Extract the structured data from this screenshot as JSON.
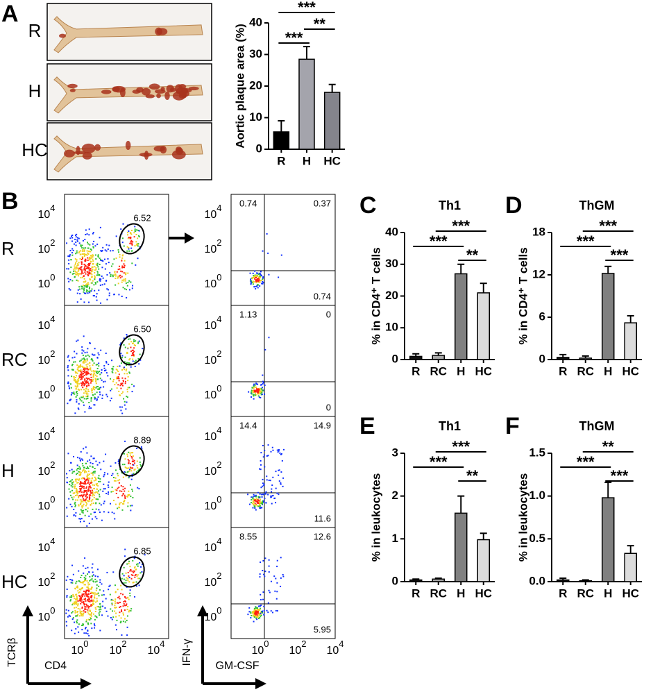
{
  "panel_labels": [
    "A",
    "B",
    "C",
    "D",
    "E",
    "F"
  ],
  "aorta_labels": [
    "R",
    "H",
    "HC"
  ],
  "flow": {
    "rows": [
      {
        "label": "R",
        "gate": "6.52",
        "quadrants": [
          "0.74",
          "0.37",
          "0.74"
        ]
      },
      {
        "label": "RC",
        "gate": "6.50",
        "quadrants": [
          "1.13",
          "0",
          "0"
        ]
      },
      {
        "label": "H",
        "gate": "8.89",
        "quadrants": [
          "14.4",
          "14.9",
          "11.6"
        ]
      },
      {
        "label": "HC",
        "gate": "6.85",
        "quadrants": [
          "8.55",
          "12.6",
          "5.95"
        ]
      }
    ],
    "tick_base": "10",
    "tick_exponents": [
      "0",
      "2",
      "4"
    ],
    "left_y_label": "TCRβ",
    "left_x_label": "CD4",
    "right_y_label": "IFN-γ",
    "right_x_label": "GM-CSF"
  },
  "chart_data": [
    {
      "type": "bar",
      "y_label": "Aortic plaque area (%)",
      "categories": [
        "R",
        "H",
        "HC"
      ],
      "values": [
        5.5,
        28.5,
        18
      ],
      "errors": [
        3.5,
        4,
        2.5
      ],
      "colors": [
        "#000000",
        "#a4a4ac",
        "#84848c"
      ],
      "ylim": [
        0,
        40
      ],
      "yticks": [
        0,
        10,
        20,
        30,
        40
      ],
      "annotations": [
        {
          "text": "***",
          "between": [
            "R",
            "H"
          ]
        },
        {
          "text": "**",
          "between": [
            "H",
            "HC"
          ]
        },
        {
          "text": "***",
          "between": [
            "R",
            "HC"
          ]
        }
      ]
    },
    {
      "type": "bar",
      "title": "Th1",
      "y_label": "% in CD4⁺ T cells",
      "categories": [
        "R",
        "RC",
        "H",
        "HC"
      ],
      "values": [
        1,
        1.3,
        27,
        21
      ],
      "errors": [
        0.8,
        0.8,
        3,
        3
      ],
      "colors": [
        "#111111",
        "#a8a8a8",
        "#808080",
        "#dcdcdc"
      ],
      "ylim": [
        0,
        40
      ],
      "yticks": [
        0,
        10,
        20,
        30,
        40
      ],
      "annotations": [
        {
          "text": "**",
          "between": [
            "H",
            "HC"
          ]
        },
        {
          "text": "***",
          "between": [
            "R",
            "H"
          ]
        },
        {
          "text": "***",
          "between": [
            "RC",
            "HC"
          ]
        }
      ]
    },
    {
      "type": "bar",
      "title": "ThGM",
      "y_label": "% in CD4⁺ T cells",
      "categories": [
        "R",
        "RC",
        "H",
        "HC"
      ],
      "values": [
        0.3,
        0.2,
        12.2,
        5.2
      ],
      "errors": [
        0.4,
        0.3,
        1,
        1
      ],
      "colors": [
        "#111111",
        "#a8a8a8",
        "#808080",
        "#dcdcdc"
      ],
      "ylim": [
        0,
        18
      ],
      "yticks": [
        0,
        6,
        12,
        18
      ],
      "annotations": [
        {
          "text": "***",
          "between": [
            "H",
            "HC"
          ]
        },
        {
          "text": "***",
          "between": [
            "R",
            "H"
          ]
        },
        {
          "text": "***",
          "between": [
            "RC",
            "HC"
          ]
        }
      ]
    },
    {
      "type": "bar",
      "title": "Th1",
      "y_label": "% in leukocytes",
      "categories": [
        "R",
        "RC",
        "H",
        "HC"
      ],
      "values": [
        0.04,
        0.06,
        1.6,
        0.98
      ],
      "errors": [
        0.02,
        0.02,
        0.4,
        0.15
      ],
      "colors": [
        "#111111",
        "#a8a8a8",
        "#808080",
        "#dcdcdc"
      ],
      "ylim": [
        0,
        3
      ],
      "yticks": [
        0,
        1,
        2,
        3
      ],
      "annotations": [
        {
          "text": "**",
          "between": [
            "H",
            "HC"
          ]
        },
        {
          "text": "***",
          "between": [
            "R",
            "H"
          ]
        },
        {
          "text": "***",
          "between": [
            "RC",
            "HC"
          ]
        }
      ]
    },
    {
      "type": "bar",
      "title": "ThGM",
      "y_label": "% in leukocytes",
      "categories": [
        "R",
        "RC",
        "H",
        "HC"
      ],
      "values": [
        0.02,
        0.01,
        0.98,
        0.33
      ],
      "errors": [
        0.02,
        0.01,
        0.18,
        0.09
      ],
      "colors": [
        "#111111",
        "#a8a8a8",
        "#808080",
        "#dcdcdc"
      ],
      "ylim": [
        0,
        1.5
      ],
      "yticks": [
        {
          "value": 0,
          "label": "0.0"
        },
        {
          "value": 0.5,
          "label": "0.5"
        },
        {
          "value": 1,
          "label": "1.0"
        },
        {
          "value": 1.5,
          "label": "1.5"
        }
      ],
      "annotations": [
        {
          "text": "***",
          "between": [
            "H",
            "HC"
          ]
        },
        {
          "text": "***",
          "between": [
            "R",
            "H"
          ]
        },
        {
          "text": "**",
          "between": [
            "RC",
            "HC"
          ]
        }
      ]
    }
  ]
}
